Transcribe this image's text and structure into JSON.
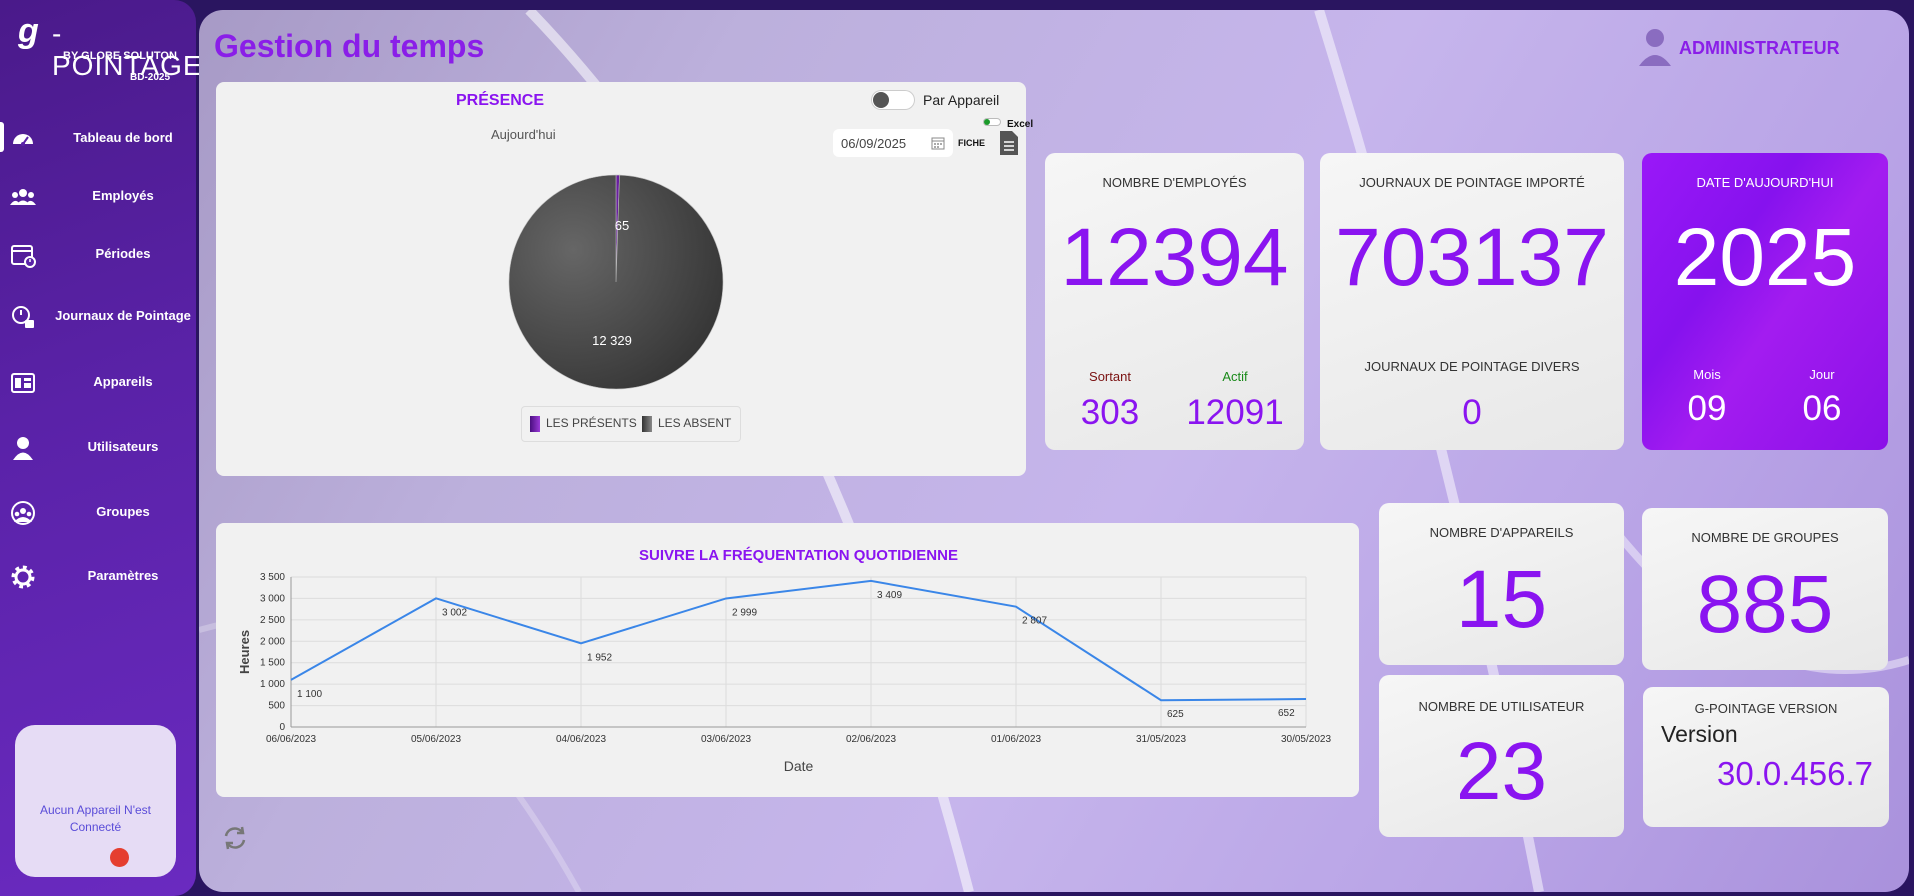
{
  "sidebar": {
    "brand_mark": "g",
    "brand_name": "-POINTAGE",
    "brand_by": "BY GLOBE SOLUTON",
    "brand_code": "BD-2025",
    "items": [
      {
        "label": "Tableau de bord",
        "icon": "dashboard-icon"
      },
      {
        "label": "Employés",
        "icon": "users-icon"
      },
      {
        "label": "Périodes",
        "icon": "calendar-clock-icon"
      },
      {
        "label": "Journaux de Pointage",
        "icon": "time-log-icon"
      },
      {
        "label": "Appareils",
        "icon": "device-icon"
      },
      {
        "label": "Utilisateurs",
        "icon": "user-icon"
      },
      {
        "label": "Groupes",
        "icon": "groups-icon"
      },
      {
        "label": "Paramètres",
        "icon": "gear-icon"
      }
    ],
    "device_status": "Aucun Appareil N'est Connecté"
  },
  "header": {
    "title": "Gestion du temps",
    "user": "ADMINISTRATEUR"
  },
  "presence": {
    "title": "PRÉSENCE",
    "toggle_label": "Par Appareil",
    "period": "Aujourd'hui",
    "date": "06/09/2025",
    "excel_label": "Excel",
    "fiche_label": "FICHE",
    "legend_present": "LES PRÉSENTS",
    "legend_absent": "LES ABSENT",
    "present_label": "65",
    "absent_label": "12 329"
  },
  "kpis": {
    "employees": {
      "title": "NOMBRE D'EMPLOYÉS",
      "value": "12394",
      "sortant_label": "Sortant",
      "sortant": "303",
      "actif_label": "Actif",
      "actif": "12091"
    },
    "logs": {
      "title": "JOURNAUX DE POINTAGE IMPORTÉ",
      "value": "703137",
      "divers_label": "JOURNAUX DE POINTAGE DIVERS",
      "divers": "0"
    },
    "today": {
      "title": "DATE D'AUJOURD'HUI",
      "year": "2025",
      "mois_label": "Mois",
      "mois": "09",
      "jour_label": "Jour",
      "jour": "06"
    },
    "devices": {
      "title": "NOMBRE D'APPAREILS",
      "value": "15"
    },
    "groups": {
      "title": "NOMBRE DE GROUPES",
      "value": "885"
    },
    "users": {
      "title": "NOMBRE DE UTILISATEUR",
      "value": "23"
    },
    "version": {
      "title": "G-POINTAGE VERSION",
      "label": "Version",
      "value": "30.0.456.7"
    }
  },
  "colors": {
    "accent": "#8a14f0",
    "present": "#6a1fa0",
    "absent": "#4a4a4a",
    "line": "#3a86e8",
    "status_dot": "#e53e2f"
  },
  "chart_data": [
    {
      "type": "pie",
      "categories": [
        "LES PRÉSENTS",
        "LES ABSENT"
      ],
      "values": [
        65,
        12329
      ]
    },
    {
      "type": "line",
      "title": "SUIVRE LA FRÉQUENTATION QUOTIDIENNE",
      "xlabel": "Date",
      "ylabel": "Heures",
      "x": [
        "06/06/2023",
        "05/06/2023",
        "04/06/2023",
        "03/06/2023",
        "02/06/2023",
        "01/06/2023",
        "31/05/2023",
        "30/05/2023"
      ],
      "values": [
        1100,
        3002,
        1952,
        2999,
        3409,
        2807,
        625,
        652
      ],
      "data_labels": [
        "1 100",
        "3 002",
        "1 952",
        "2 999",
        "3 409",
        "2 807",
        "625",
        "652"
      ],
      "ylim": [
        0,
        3500
      ],
      "yticks": [
        "0",
        "500",
        "1 000",
        "1 500",
        "2 000",
        "2 500",
        "3 000",
        "3 500"
      ],
      "grid": true
    }
  ]
}
